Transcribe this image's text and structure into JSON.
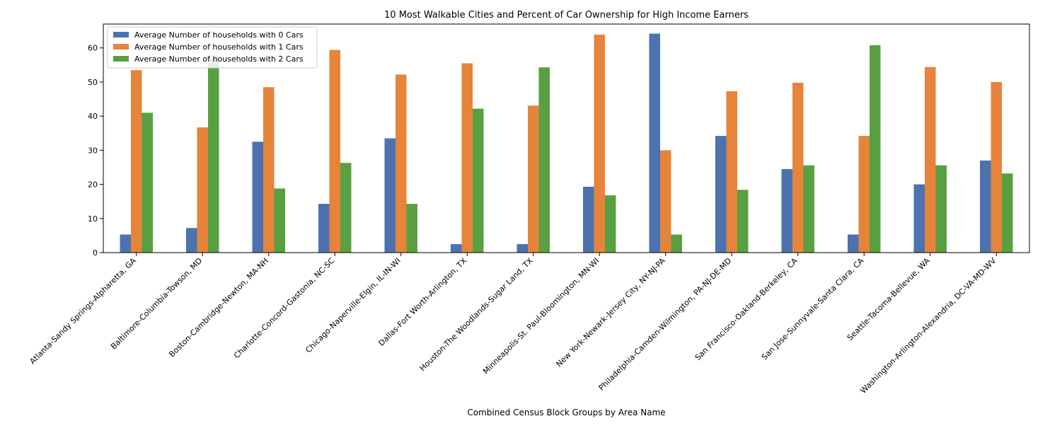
{
  "chart_data": {
    "type": "bar",
    "title": "10 Most Walkable Cities and Percent of Car Ownership for High Income Earners",
    "xlabel": "Combined Census Block Groups by Area Name",
    "ylabel": "",
    "ylim": [
      0,
      67
    ],
    "yticks": [
      0,
      10,
      20,
      30,
      40,
      50,
      60
    ],
    "grid": false,
    "legend_position": "top-left",
    "categories": [
      "Atlanta-Sandy Springs-Alpharetta, GA",
      "Baltimore-Columbia-Towson, MD",
      "Boston-Cambridge-Newton, MA-NH",
      "Charlotte-Concord-Gastonia, NC-SC",
      "Chicago-Naperville-Elgin, IL-IN-WI",
      "Dallas-Fort Worth-Arlington, TX",
      "Houston-The Woodlands-Sugar Land, TX",
      "Minneapolis-St. Paul-Bloomington, MN-WI",
      "New York-Newark-Jersey City, NY-NJ-PA",
      "Philadelphia-Camden-Wilmington, PA-NJ-DE-MD",
      "San Francisco-Oakland-Berkeley, CA",
      "San Jose-Sunnyvale-Santa Clara, CA",
      "Seattle-Tacoma-Bellevue, WA",
      "Washington-Arlington-Alexandria, DC-VA-MD-WV"
    ],
    "series": [
      {
        "name": "Average Number of households with 0 Cars",
        "color": "#4c72b0",
        "values": [
          5.3,
          7.2,
          32.5,
          14.3,
          33.5,
          2.5,
          2.5,
          19.3,
          64.2,
          34.2,
          24.5,
          5.3,
          20.0,
          27.0
        ]
      },
      {
        "name": "Average Number of households with 1 Cars",
        "color": "#e5843a",
        "values": [
          53.5,
          36.7,
          48.5,
          59.4,
          52.2,
          55.5,
          43.1,
          63.9,
          30.0,
          47.3,
          49.8,
          34.2,
          54.4,
          50.0
        ]
      },
      {
        "name": "Average Number of households with 2 Cars",
        "color": "#59a042",
        "values": [
          41.0,
          57.0,
          18.8,
          26.3,
          14.3,
          42.2,
          54.3,
          16.8,
          5.3,
          18.4,
          25.6,
          60.8,
          25.6,
          23.2
        ]
      }
    ]
  }
}
